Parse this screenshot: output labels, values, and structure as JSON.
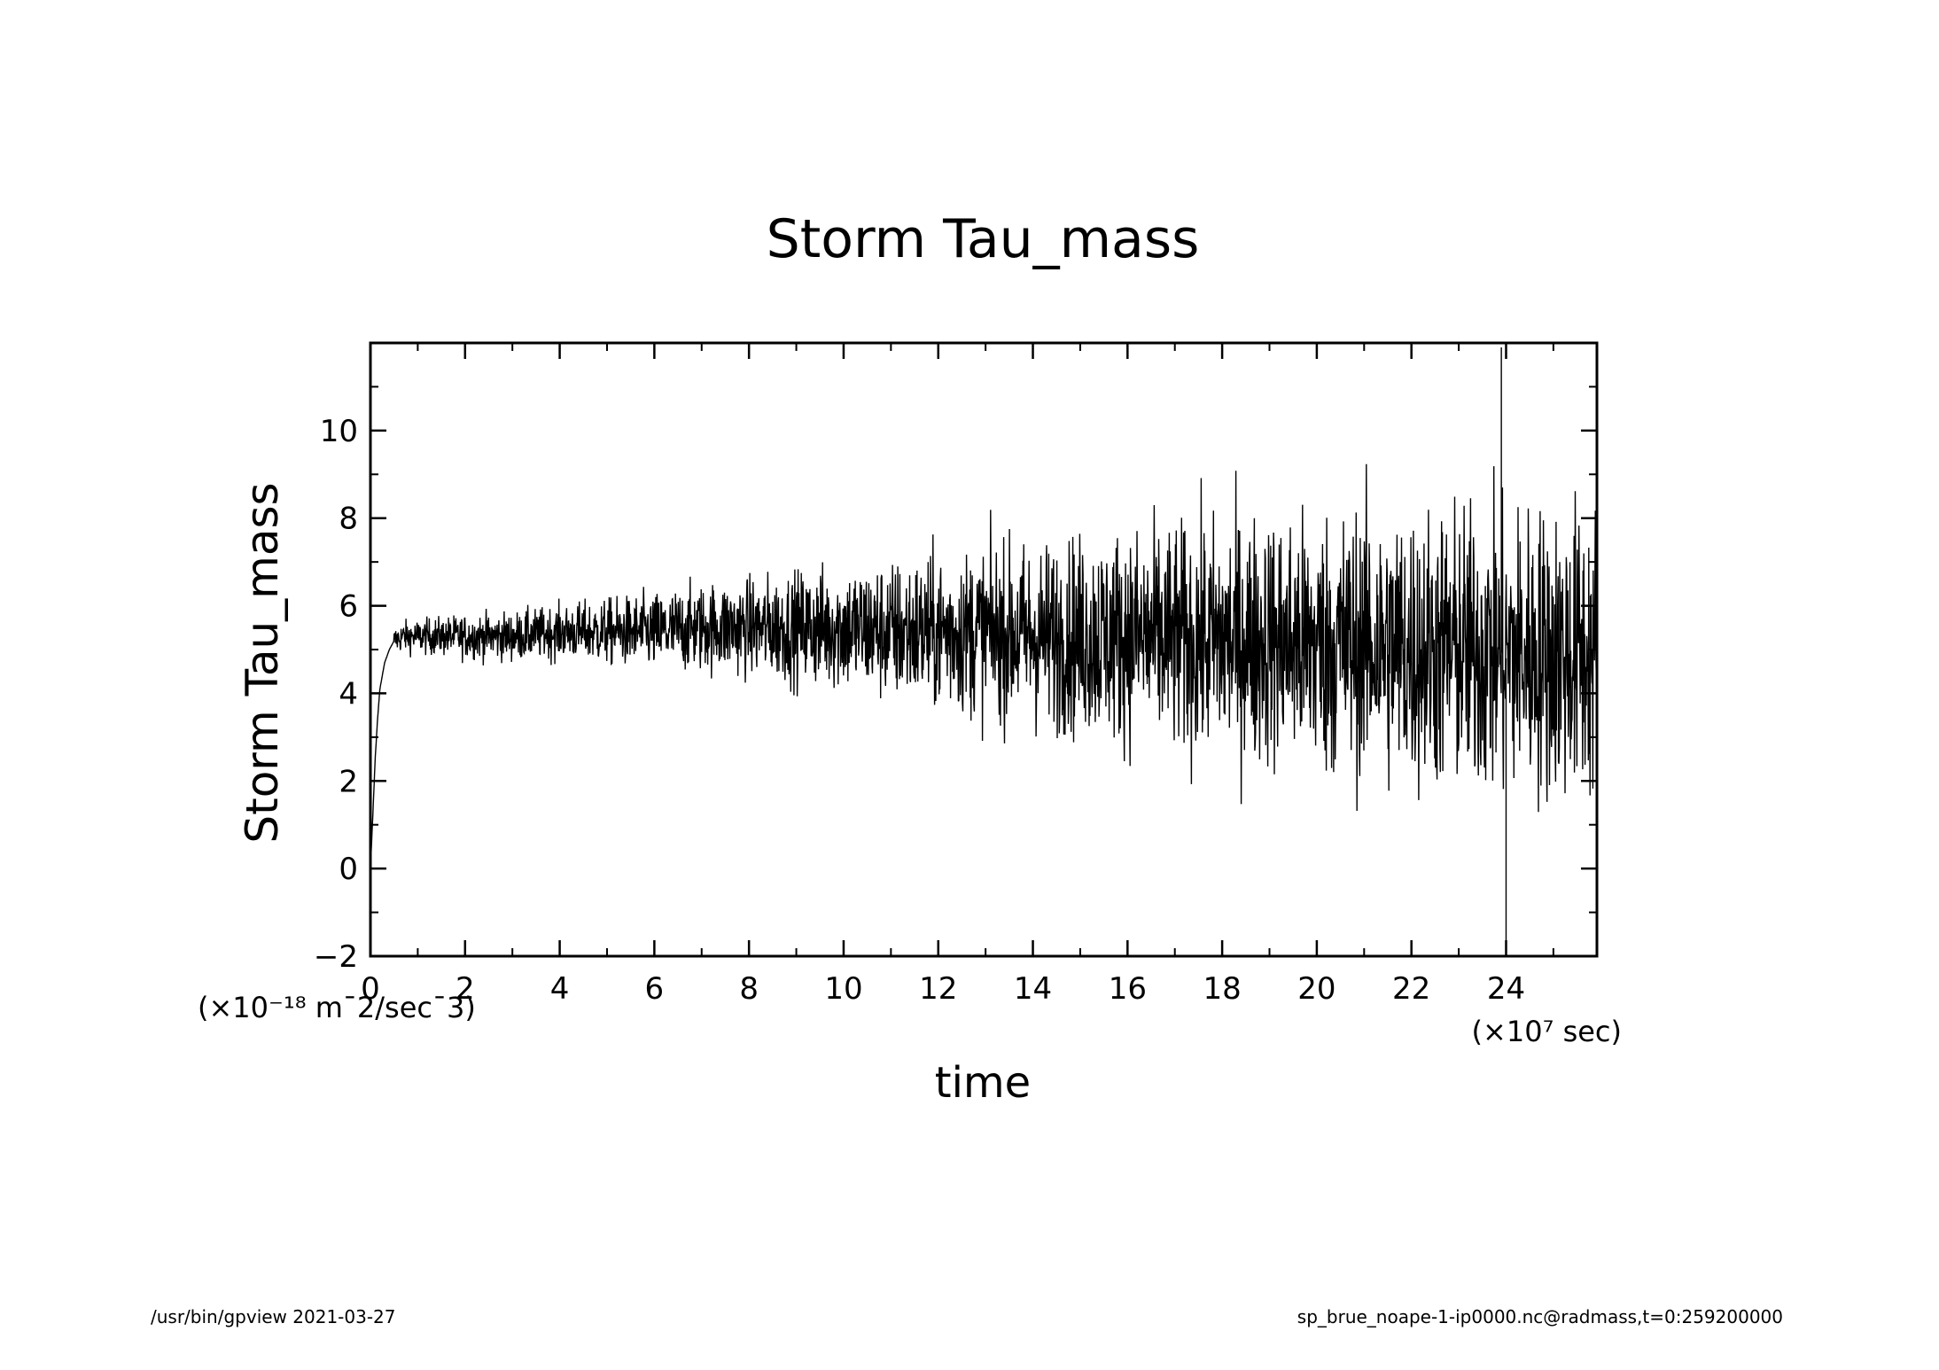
{
  "footer": {
    "left": "/usr/bin/gpview   2021-03-27",
    "right": "sp_brue_noape-1-ip0000.nc@radmass,t=0:259200000"
  },
  "chart_data": {
    "type": "line",
    "title": "Storm Tau_mass",
    "xlabel": "time",
    "ylabel": "Storm Tau_mass",
    "x_unit": "(×10⁷ sec)",
    "y_unit": "(×10⁻¹⁸ m¯2/sec¯3)",
    "xlim": [
      0,
      25.92
    ],
    "ylim": [
      -2,
      12
    ],
    "x_ticks": [
      "0",
      "2",
      "4",
      "6",
      "8",
      "10",
      "12",
      "14",
      "16",
      "18",
      "20",
      "22",
      "24"
    ],
    "y_ticks": [
      "-2",
      "0",
      "2",
      "4",
      "6",
      "8",
      "10"
    ],
    "grid": false,
    "line_color": "#000000",
    "series": [
      {
        "x": [
          0,
          0.05,
          0.1,
          0.15,
          0.2,
          0.3,
          0.4,
          0.5,
          0.7,
          1.0,
          1.5,
          2.0,
          2.5,
          3.0,
          4.0,
          5.0,
          6.0,
          7.0,
          8.0,
          9.0,
          10.0,
          11.0,
          12.0,
          13.0,
          14.0,
          15.0,
          16.0,
          17.0,
          18.0,
          19.0,
          20.0,
          21.0,
          22.0,
          23.0,
          24.0,
          25.0,
          25.92
        ],
        "y": [
          0,
          1.2,
          2.5,
          3.4,
          4.1,
          4.7,
          5.0,
          5.2,
          5.3,
          5.3,
          5.3,
          5.3,
          5.3,
          5.3,
          5.4,
          5.4,
          5.4,
          5.5,
          5.5,
          5.5,
          5.5,
          5.4,
          5.4,
          5.4,
          5.3,
          5.3,
          5.3,
          5.2,
          5.2,
          5.2,
          5.1,
          5.1,
          5.0,
          5.0,
          4.9,
          4.9,
          4.9
        ]
      },
      {
        "name": "",
        "x": [
          0.5,
          2.0,
          4.0,
          6.0,
          8.0,
          10.0,
          12.0,
          14.0,
          16.0,
          18.0,
          20.0,
          22.0,
          24.0,
          25.92
        ],
        "y_spread": [
          0.3,
          0.45,
          0.55,
          0.8,
          1.0,
          1.3,
          1.6,
          1.9,
          2.2,
          2.5,
          2.7,
          2.9,
          3.0,
          3.1
        ]
      }
    ],
    "annotations": {
      "max_peak": {
        "x": 23.9,
        "y": 11.9
      },
      "min_trough": {
        "x": 24.0,
        "y": -2.0
      }
    }
  }
}
